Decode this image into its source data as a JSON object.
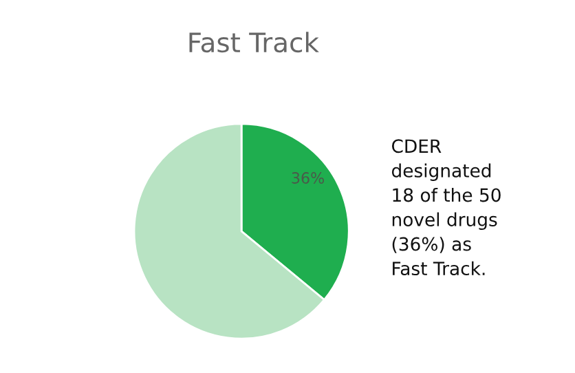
{
  "chart_data": {
    "type": "pie",
    "title": "Fast Track",
    "categories": [
      null,
      null
    ],
    "values": [
      36,
      64
    ],
    "colors": [
      "#1fae4f",
      "#b8e3c3"
    ],
    "value_labels": [
      "36%",
      null
    ],
    "annotations": [
      "CDER\ndesignated\n18 of the 50\nnovel drugs\n(36%) as\nFast Track."
    ]
  }
}
